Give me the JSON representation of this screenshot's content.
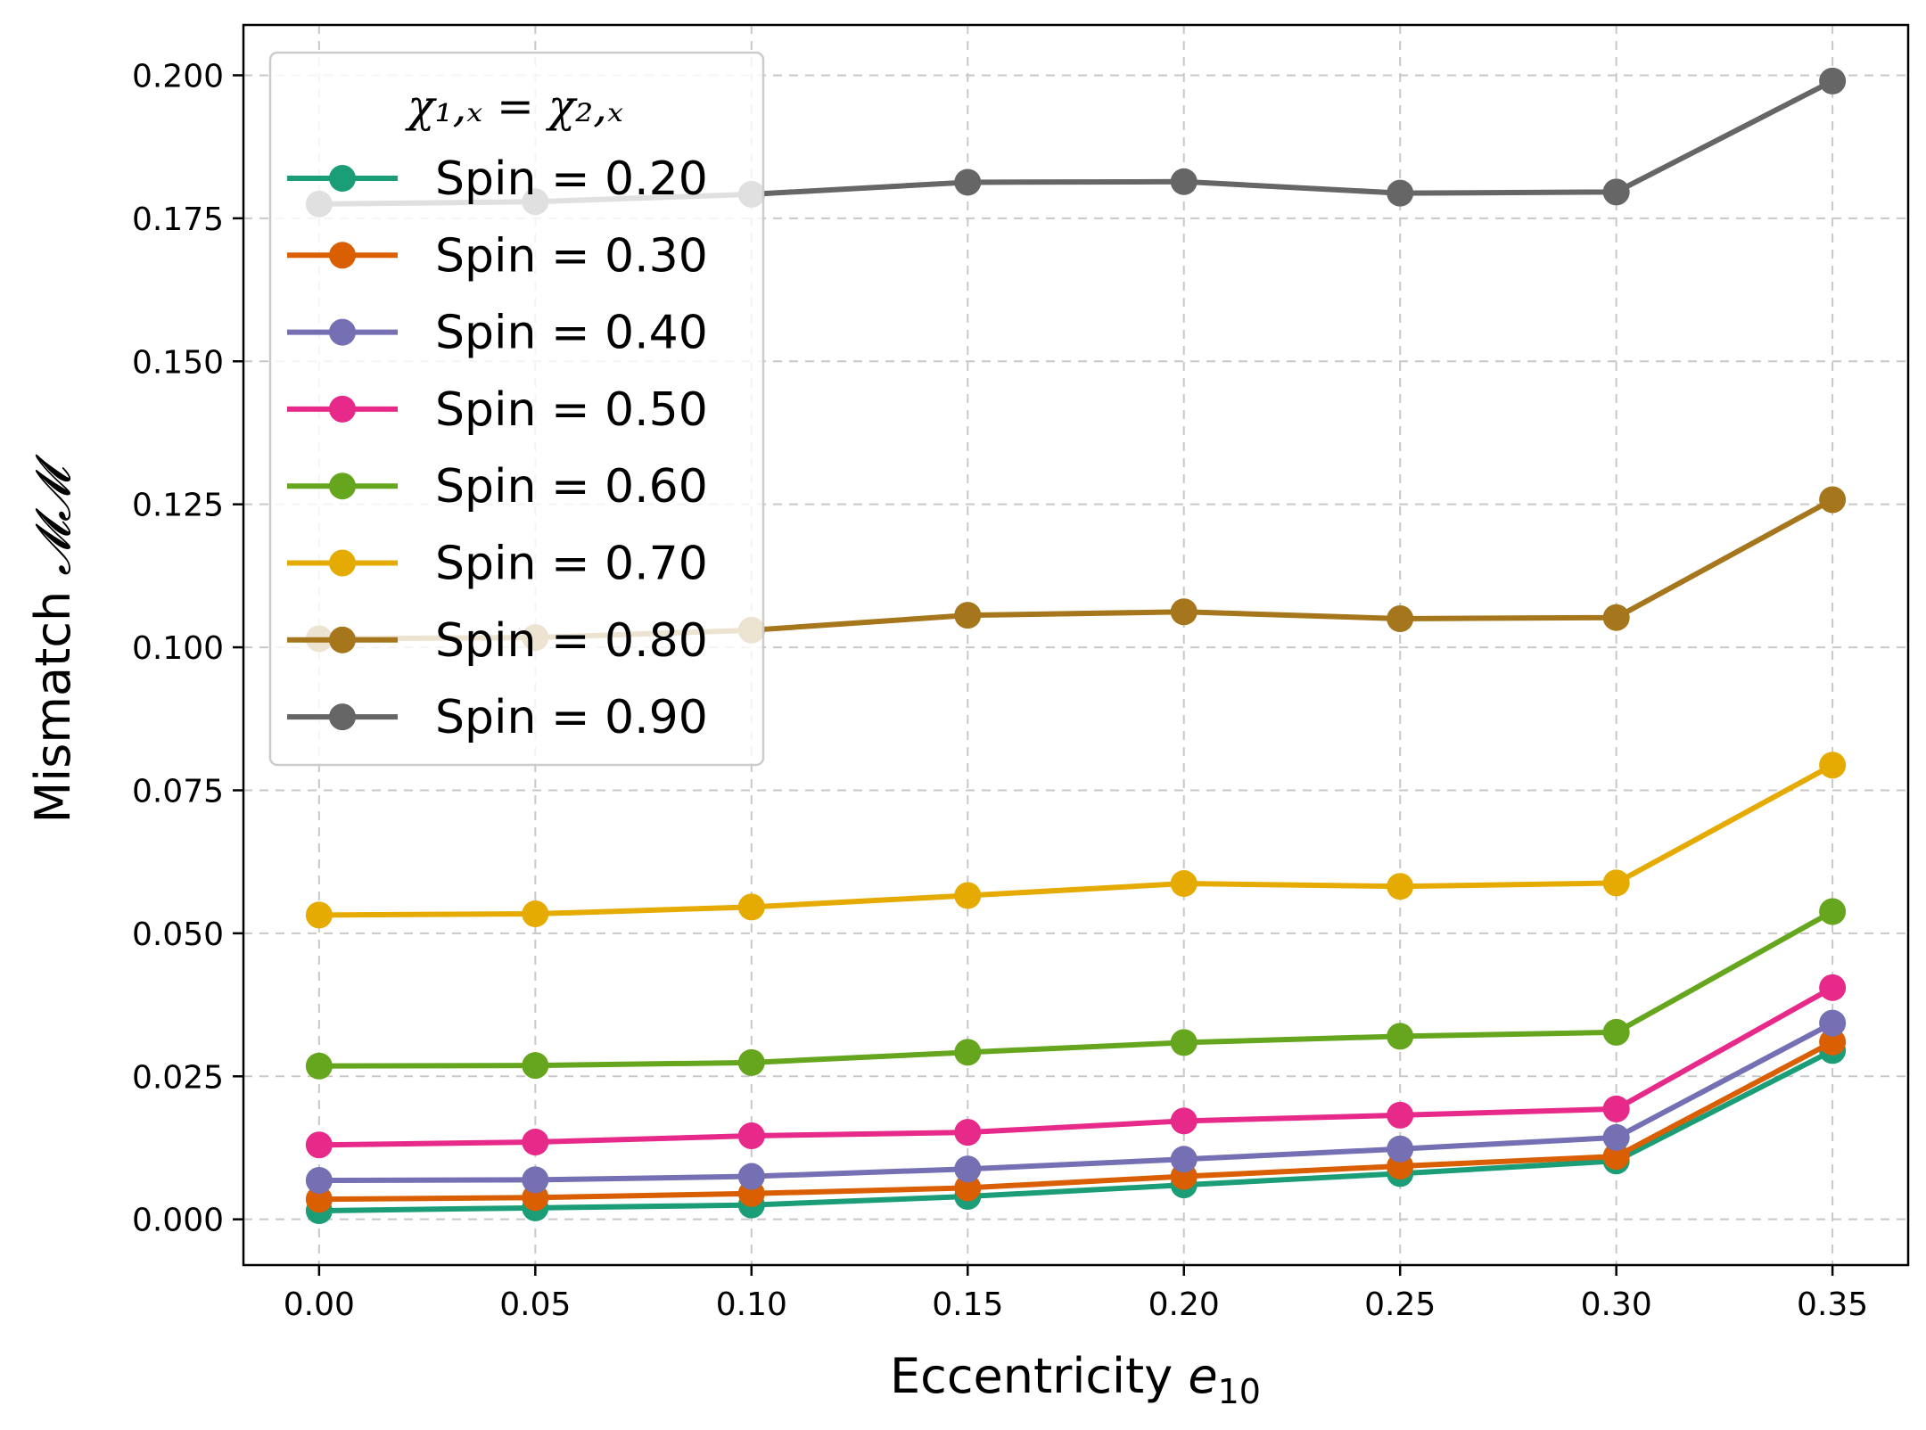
{
  "chart_data": {
    "type": "line",
    "xlabel_main": "Eccentricity ",
    "xlabel_var": "e",
    "xlabel_sub": "10",
    "ylabel_main": "Mismatch ",
    "ylabel_var": "𝓜𝓜",
    "legend_title": "χ₁,ₓ = χ₂,ₓ",
    "legend_position": "upper-left",
    "grid": true,
    "xlim": [
      -0.0175,
      0.3675
    ],
    "ylim": [
      -0.008,
      0.2088
    ],
    "x": [
      0.0,
      0.05,
      0.1,
      0.15,
      0.2,
      0.25,
      0.3,
      0.35
    ],
    "x_tick_labels": [
      "0.00",
      "0.05",
      "0.10",
      "0.15",
      "0.20",
      "0.25",
      "0.30",
      "0.35"
    ],
    "y_ticks": [
      0.0,
      0.025,
      0.05,
      0.075,
      0.1,
      0.125,
      0.15,
      0.175,
      0.2
    ],
    "y_tick_labels": [
      "0.000",
      "0.025",
      "0.050",
      "0.075",
      "0.100",
      "0.125",
      "0.150",
      "0.175",
      "0.200"
    ],
    "series": [
      {
        "name": "Spin = 0.20",
        "color": "#1b9e77",
        "values": [
          0.0015,
          0.002,
          0.0025,
          0.004,
          0.006,
          0.008,
          0.0102,
          0.0295
        ]
      },
      {
        "name": "Spin = 0.30",
        "color": "#d95f02",
        "values": [
          0.0035,
          0.0038,
          0.0045,
          0.0055,
          0.0075,
          0.0093,
          0.011,
          0.031
        ]
      },
      {
        "name": "Spin = 0.40",
        "color": "#7570b3",
        "values": [
          0.0068,
          0.0069,
          0.0075,
          0.0088,
          0.0105,
          0.0123,
          0.0143,
          0.0343
        ]
      },
      {
        "name": "Spin = 0.50",
        "color": "#e7298a",
        "values": [
          0.013,
          0.0135,
          0.0146,
          0.0152,
          0.0172,
          0.0182,
          0.0193,
          0.0405
        ]
      },
      {
        "name": "Spin = 0.60",
        "color": "#66a61e",
        "values": [
          0.0268,
          0.0269,
          0.0274,
          0.0292,
          0.0309,
          0.032,
          0.0327,
          0.0538
        ]
      },
      {
        "name": "Spin = 0.70",
        "color": "#e6ab02",
        "values": [
          0.0532,
          0.0534,
          0.0546,
          0.0566,
          0.0587,
          0.0582,
          0.0588,
          0.0794
        ]
      },
      {
        "name": "Spin = 0.80",
        "color": "#a6761d",
        "values": [
          0.1015,
          0.1017,
          0.103,
          0.1056,
          0.1062,
          0.105,
          0.1052,
          0.1258
        ]
      },
      {
        "name": "Spin = 0.90",
        "color": "#666666",
        "values": [
          0.1775,
          0.1779,
          0.1792,
          0.1813,
          0.1814,
          0.1794,
          0.1796,
          0.199
        ]
      }
    ]
  }
}
